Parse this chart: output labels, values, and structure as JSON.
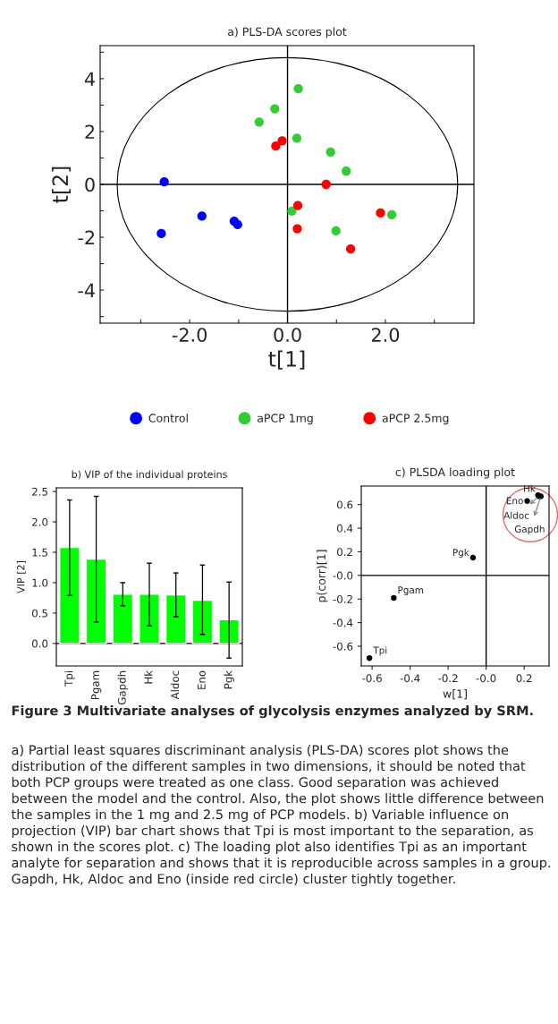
{
  "chart_data": [
    {
      "type": "scatter",
      "title": "a) PLS-DA scores plot",
      "xlabel": "t[1]",
      "ylabel": "t[2]",
      "xlim": [
        -3.83,
        3.81
      ],
      "ylim": [
        -5.25,
        5.25
      ],
      "xticks": [
        {
          "value": -3,
          "label": null
        },
        {
          "value": -2,
          "label": "-2.0"
        },
        {
          "value": -1,
          "label": null
        },
        {
          "value": 0,
          "label": "0.0"
        },
        {
          "value": 1,
          "label": null
        },
        {
          "value": 2,
          "label": "2.0"
        },
        {
          "value": 3,
          "label": null
        }
      ],
      "yticks": [
        {
          "value": -5,
          "label": null
        },
        -4,
        {
          "value": -3,
          "label": null
        },
        -2,
        {
          "value": -1,
          "label": null
        },
        0,
        {
          "value": 1,
          "label": null
        },
        2,
        {
          "value": 3,
          "label": null
        },
        4,
        {
          "value": 5,
          "label": null
        }
      ],
      "grid": false,
      "legend": "bottom",
      "marker": "circle",
      "ref_lines": [
        {
          "axis": "x",
          "value": 0,
          "color": "#000000"
        },
        {
          "axis": "y",
          "value": 0,
          "color": "#000000"
        }
      ],
      "series": [
        {
          "name": "Control",
          "color": "#0000ff",
          "x": [
            -2.52,
            -1.75,
            -2.58,
            -1.09,
            -1.02
          ],
          "values": [
            0.1,
            -1.2,
            -1.86,
            -1.39,
            -1.52
          ]
        },
        {
          "name": "aPCP 1mg",
          "color": "#33cc33",
          "x": [
            0.22,
            -0.26,
            -0.58,
            0.19,
            0.88,
            1.2,
            0.09,
            0.99,
            2.13
          ],
          "values": [
            3.62,
            2.86,
            2.36,
            1.75,
            1.22,
            0.5,
            -1.01,
            -1.76,
            -1.15
          ]
        },
        {
          "name": "aPCP 2.5mg",
          "color": "#ff0000",
          "x": [
            -0.24,
            -0.11,
            0.79,
            0.21,
            0.2,
            1.29,
            1.9
          ],
          "values": [
            1.45,
            1.65,
            0.0,
            -0.8,
            -1.68,
            -2.44,
            -1.08
          ]
        }
      ]
    },
    {
      "type": "bar",
      "title": "b) VIP of the individual proteins",
      "ylabel": "VIP [2]",
      "categories": [
        "Tpi",
        "Pgam",
        "Gapdh",
        "Hk",
        "Aldoc",
        "Eno",
        "Pgk"
      ],
      "values": [
        1.58,
        1.39,
        0.81,
        0.81,
        0.8,
        0.71,
        0.39
      ],
      "errors": [
        [
          0.79,
          2.36
        ],
        [
          0.35,
          2.42
        ],
        [
          0.62,
          1.0
        ],
        [
          0.29,
          1.32
        ],
        [
          0.44,
          1.16
        ],
        [
          0.15,
          1.29
        ],
        [
          -0.24,
          1.01
        ]
      ],
      "color": "#00ff00",
      "ylim": [
        -0.37,
        2.56
      ],
      "yticks": [
        {
          "value": 0,
          "label": "0.0"
        },
        {
          "value": 0.5,
          "label": "0.5"
        },
        {
          "value": 1,
          "label": "1.0"
        },
        {
          "value": 1.5,
          "label": "1.5"
        },
        {
          "value": 2,
          "label": "2.0"
        },
        {
          "value": 2.5,
          "label": "2.5"
        }
      ],
      "grid": false,
      "ref_lines": [
        {
          "axis": "y",
          "value": 0,
          "color": "#000000"
        }
      ]
    },
    {
      "type": "scatter",
      "title": "c) PLSDA loading plot",
      "xlabel": "w[1]",
      "ylabel": "p(corr)[1]",
      "xlim": [
        -0.657,
        0.331
      ],
      "ylim": [
        -0.767,
        0.757
      ],
      "xticks": [
        {
          "value": -0.6,
          "label": "-0.6"
        },
        {
          "value": -0.4,
          "label": "-0.4"
        },
        {
          "value": -0.2,
          "label": "-0.2"
        },
        {
          "value": 0,
          "label": "-0.0"
        },
        {
          "value": 0.2,
          "label": "0.2"
        }
      ],
      "yticks": [
        {
          "value": -0.6,
          "label": "-0.6"
        },
        {
          "value": -0.4,
          "label": "-0.4"
        },
        {
          "value": -0.2,
          "label": "-0.2"
        },
        {
          "value": 0,
          "label": "-0.0"
        },
        {
          "value": 0.2,
          "label": "0.2"
        },
        {
          "value": 0.4,
          "label": "0.4"
        },
        {
          "value": 0.6,
          "label": "0.6"
        }
      ],
      "grid": false,
      "marker": "circle",
      "color": "#000000",
      "x": [
        -0.614,
        -0.486,
        -0.069,
        0.216,
        0.273,
        0.277,
        0.288
      ],
      "values": [
        -0.7,
        -0.19,
        0.15,
        0.63,
        0.68,
        0.67,
        0.67
      ],
      "value_labels": [
        "Tpi",
        "Pgam",
        "Pgk",
        "Eno",
        "Hk",
        "Aldoc",
        "Gapdh"
      ],
      "ref_lines": [
        {
          "axis": "x",
          "value": 0,
          "color": "#000000"
        },
        {
          "axis": "y",
          "value": 0,
          "color": "#000000"
        }
      ],
      "annotations": [
        "Figure 3 Multivariate analyses of glycolysis enzymes analyzed by SRM.",
        "a) Partial least squares discriminant analysis (PLS-DA) scores plot shows the distribution of the different samples in two dimensions, it should be noted that both PCP groups were treated as one class. Good separation was achieved between the model and the control. Also, the plot shows little difference between the samples in the 1 mg and 2.5 mg of PCP models. b) Variable influence on projection (VIP) bar chart shows that Tpi is most important to the separation, as shown in the scores plot. c) The loading plot also identifies Tpi as an important analyte for separation and shows that it is reproducible across samples in a group. Gapdh, Hk, Aldoc and Eno (inside red circle) cluster tightly together."
      ]
    }
  ]
}
